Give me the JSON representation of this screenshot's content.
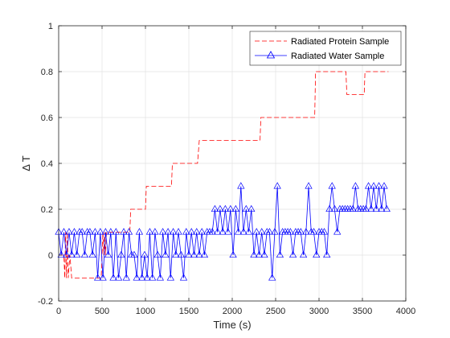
{
  "chart_data": {
    "type": "line",
    "xlabel": "Time (s)",
    "ylabel": "Δ T",
    "xlim": [
      0,
      4000
    ],
    "ylim": [
      -0.2,
      1
    ],
    "x_ticks": [
      "0",
      "500",
      "1000",
      "1500",
      "2000",
      "2500",
      "3000",
      "3500",
      "4000"
    ],
    "y_ticks": [
      "-0.2",
      "0",
      "0.2",
      "0.4",
      "0.6",
      "0.8",
      "1"
    ],
    "grid": true,
    "legend_position": "top-right",
    "series": [
      {
        "name": "Radiated Protein Sample",
        "color": "#ff0000",
        "line_style": "dashed",
        "marker": "none",
        "x": [
          0,
          60,
          70,
          80,
          90,
          100,
          110,
          130,
          150,
          160,
          450,
          490,
          500,
          510,
          520,
          530,
          540,
          550,
          820,
          830,
          1000,
          1010,
          1300,
          1310,
          1600,
          1620,
          2320,
          2330,
          2950,
          2960,
          3310,
          3320,
          3520,
          3530,
          3800
        ],
        "y": [
          0,
          0,
          -0.1,
          0.1,
          -0.1,
          0.1,
          -0.1,
          0,
          -0.1,
          -0.1,
          -0.1,
          -0.1,
          0,
          0.1,
          0,
          0.1,
          0,
          0.1,
          0.1,
          0.2,
          0.2,
          0.3,
          0.3,
          0.4,
          0.4,
          0.5,
          0.5,
          0.6,
          0.6,
          0.8,
          0.8,
          0.7,
          0.7,
          0.8,
          0.8
        ]
      },
      {
        "name": "Radiated Water Sample",
        "color": "#0000ff",
        "line_style": "solid",
        "marker": "triangle",
        "x": [
          0,
          30,
          60,
          90,
          120,
          150,
          180,
          210,
          240,
          270,
          300,
          330,
          360,
          390,
          420,
          450,
          480,
          510,
          540,
          570,
          600,
          630,
          660,
          690,
          720,
          750,
          780,
          810,
          840,
          870,
          900,
          930,
          960,
          990,
          1020,
          1050,
          1080,
          1110,
          1140,
          1170,
          1200,
          1230,
          1260,
          1290,
          1320,
          1350,
          1380,
          1410,
          1440,
          1470,
          1500,
          1530,
          1560,
          1590,
          1620,
          1650,
          1680,
          1710,
          1740,
          1770,
          1800,
          1830,
          1860,
          1890,
          1920,
          1950,
          1980,
          2010,
          2040,
          2070,
          2100,
          2130,
          2160,
          2190,
          2220,
          2250,
          2280,
          2310,
          2340,
          2370,
          2400,
          2430,
          2460,
          2490,
          2520,
          2550,
          2580,
          2610,
          2640,
          2670,
          2700,
          2730,
          2760,
          2790,
          2820,
          2850,
          2880,
          2910,
          2940,
          2970,
          3000,
          3030,
          3060,
          3090,
          3120,
          3150,
          3180,
          3210,
          3240,
          3270,
          3300,
          3330,
          3360,
          3390,
          3420,
          3450,
          3480,
          3510,
          3540,
          3570,
          3600,
          3630,
          3660,
          3690,
          3720,
          3750,
          3780
        ],
        "y": [
          0.1,
          0,
          0.1,
          0,
          0.1,
          0,
          0.1,
          0,
          0.1,
          0.1,
          0,
          0.1,
          0.1,
          0,
          0.1,
          -0.1,
          0.1,
          -0.1,
          0.1,
          0,
          0.1,
          -0.1,
          0.1,
          -0.1,
          0,
          0.1,
          -0.1,
          0.1,
          0,
          0,
          -0.1,
          0.1,
          -0.1,
          0,
          -0.1,
          0.1,
          -0.1,
          0.1,
          0,
          -0.1,
          0.1,
          0,
          0.1,
          -0.1,
          0.1,
          0,
          0.1,
          0,
          -0.1,
          0.1,
          0,
          0.1,
          0,
          0.1,
          0,
          0.1,
          0,
          0.1,
          0.1,
          0.1,
          0.2,
          0.1,
          0.2,
          0.1,
          0.2,
          0.1,
          0.2,
          0,
          0.2,
          0.1,
          0.3,
          0.1,
          0.2,
          0.1,
          0.2,
          0,
          0.1,
          0,
          0.1,
          0,
          0.1,
          0.1,
          -0.1,
          0.1,
          0.3,
          0,
          0.1,
          0.1,
          0.1,
          0.1,
          0,
          0.1,
          0.1,
          0.1,
          0,
          0.1,
          0.3,
          0.1,
          0.1,
          0,
          0.1,
          0.1,
          0.1,
          0,
          0.2,
          0.3,
          0.2,
          0.1,
          0.2,
          0.2,
          0.2,
          0.2,
          0.2,
          0.2,
          0.3,
          0.2,
          0.2,
          0.2,
          0.2,
          0.3,
          0.2,
          0.3,
          0.2,
          0.3,
          0.2,
          0.3,
          0.2
        ]
      }
    ]
  }
}
